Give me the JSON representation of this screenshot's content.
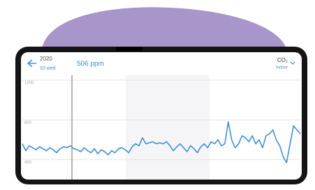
{
  "header": {
    "year": "2020",
    "date": "10 wed",
    "reading": "506 ppm",
    "sensor": "CO₂",
    "location": "Indoor"
  },
  "chart_data": {
    "type": "line",
    "color": "#3d8fd6",
    "values": [
      560,
      490,
      540,
      520,
      500,
      530,
      510,
      490,
      520,
      500,
      470,
      510,
      530,
      520,
      540,
      510,
      500,
      480,
      520,
      490,
      470,
      510,
      460,
      500,
      480,
      450,
      490,
      470,
      510,
      520,
      500,
      470,
      530,
      560,
      540,
      620,
      560,
      570,
      580,
      560,
      570,
      560,
      580,
      540,
      490,
      530,
      560,
      520,
      480,
      540,
      510,
      470,
      530,
      560,
      520,
      580,
      560,
      600,
      540,
      560,
      780,
      600,
      520,
      560,
      640,
      620,
      580,
      640,
      560,
      600,
      520,
      640,
      660,
      700,
      600,
      540,
      430,
      370,
      560,
      740,
      700,
      660
    ],
    "ylim": [
      200,
      1250
    ],
    "yticks": [
      400,
      800,
      1200
    ],
    "grid": true
  }
}
